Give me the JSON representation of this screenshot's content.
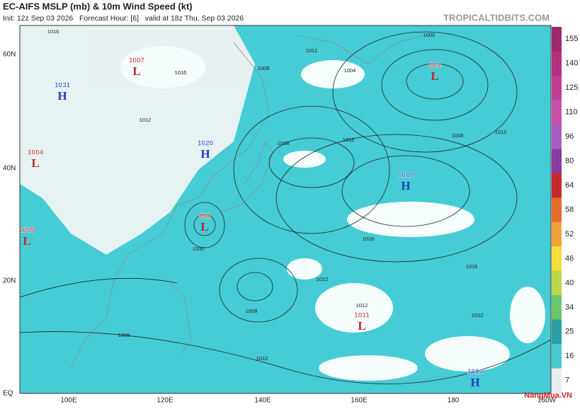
{
  "header": {
    "title": "EC-AIFS MSLP (mb) & 10m Wind Speed (kt)",
    "subtitle": "Init: 12z Sep 03 2026   Forecast Hour: [6]   valid at 18z Thu, Sep 03 2026",
    "site": "TROPICALTIDBITS.COM"
  },
  "latitude_labels": [
    "60N",
    "40N",
    "20N",
    "EQ"
  ],
  "longitude_labels": [
    "100E",
    "120E",
    "140E",
    "160E",
    "180",
    "160W"
  ],
  "colorbar_labels": [
    "155",
    "140",
    "125",
    "110",
    "96",
    "80",
    "64",
    "58",
    "52",
    "46",
    "40",
    "34",
    "25",
    "16",
    "7"
  ],
  "pressure_centers": [
    {
      "kind": "H",
      "pressure": "1031"
    },
    {
      "kind": "L",
      "pressure": "1007"
    },
    {
      "kind": "L",
      "pressure": "1004"
    },
    {
      "kind": "H",
      "pressure": "1020"
    },
    {
      "kind": "L",
      "pressure": "992"
    },
    {
      "kind": "L",
      "pressure": "1009"
    },
    {
      "kind": "L",
      "pressure": "984"
    },
    {
      "kind": "H",
      "pressure": "1019"
    },
    {
      "kind": "L",
      "pressure": "1011"
    },
    {
      "kind": "H",
      "pressure": "1012"
    }
  ],
  "isobar_labels": [
    "1016",
    "1016",
    "1012",
    "1012",
    "1008",
    "1004",
    "1000",
    "1008",
    "1012",
    "1012",
    "1016",
    "1016",
    "1012",
    "1008",
    "1012",
    "1012",
    "1008",
    "1012",
    "1000",
    "1008"
  ],
  "watermark": "NangMua.VN"
}
